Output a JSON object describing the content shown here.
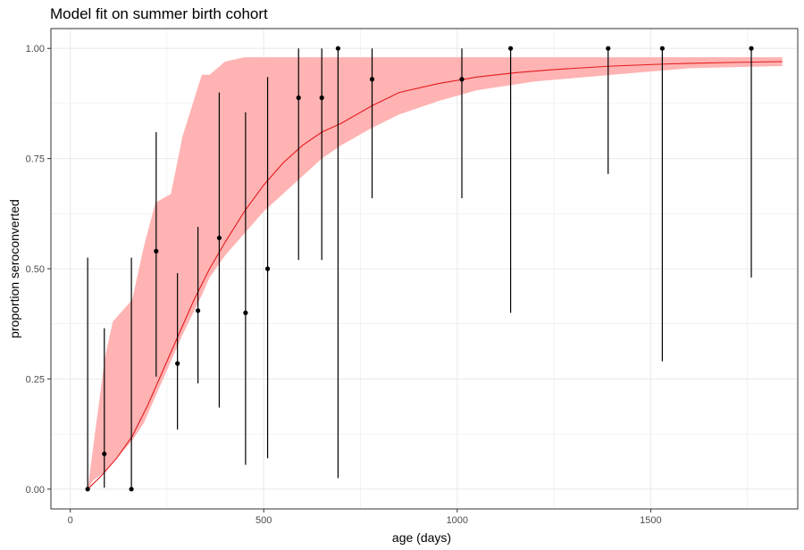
{
  "chart_data": {
    "type": "line",
    "title": "Model fit on summer birth cohort",
    "xlabel": "age (days)",
    "ylabel": "proportion seroconverted",
    "xlim": [
      -50,
      1880
    ],
    "ylim": [
      -0.045,
      1.045
    ],
    "x_ticks": [
      0,
      500,
      1000,
      1500
    ],
    "y_ticks": [
      0.0,
      0.25,
      0.5,
      0.75,
      1.0
    ],
    "x_tick_labels": [
      "0",
      "500",
      "1000",
      "1500"
    ],
    "y_tick_labels": [
      "0.00",
      "0.25",
      "0.50",
      "0.75",
      "1.00"
    ],
    "grid": true,
    "legend": "none",
    "colors": {
      "fit": "#e41a1c",
      "band": "#ffb3b3",
      "points": "#000000",
      "grid": "#ebebeb",
      "panel_border": "#333333"
    },
    "fit_line": {
      "x": [
        45,
        80,
        120,
        160,
        200,
        240,
        280,
        320,
        360,
        400,
        450,
        500,
        550,
        600,
        650,
        700,
        780,
        850,
        950,
        1050,
        1150,
        1250,
        1400,
        1550,
        1700,
        1840
      ],
      "y": [
        0.0,
        0.03,
        0.07,
        0.12,
        0.19,
        0.27,
        0.35,
        0.43,
        0.5,
        0.56,
        0.63,
        0.69,
        0.74,
        0.78,
        0.81,
        0.83,
        0.87,
        0.9,
        0.92,
        0.935,
        0.945,
        0.952,
        0.96,
        0.965,
        0.968,
        0.97
      ]
    },
    "ribbon": {
      "x": [
        45,
        60,
        90,
        110,
        130,
        160,
        190,
        220,
        260,
        290,
        340,
        360,
        400,
        450,
        500,
        550,
        600,
        650,
        700,
        780,
        850,
        950,
        1050,
        1200,
        1400,
        1600,
        1840
      ],
      "lower": [
        0.0,
        0.02,
        0.04,
        0.06,
        0.08,
        0.11,
        0.15,
        0.21,
        0.29,
        0.35,
        0.44,
        0.48,
        0.53,
        0.58,
        0.63,
        0.67,
        0.71,
        0.75,
        0.78,
        0.82,
        0.85,
        0.88,
        0.905,
        0.925,
        0.94,
        0.955,
        0.96
      ],
      "upper": [
        0.0,
        0.1,
        0.3,
        0.38,
        0.4,
        0.43,
        0.55,
        0.65,
        0.67,
        0.8,
        0.94,
        0.94,
        0.97,
        0.98,
        0.98,
        0.98,
        0.98,
        0.98,
        0.98,
        0.98,
        0.98,
        0.98,
        0.98,
        0.98,
        0.98,
        0.98,
        0.98
      ]
    },
    "points": [
      {
        "x": 45,
        "y": 0.0,
        "lo": 0.0,
        "hi": 0.525
      },
      {
        "x": 88,
        "y": 0.08,
        "lo": 0.003,
        "hi": 0.365
      },
      {
        "x": 158,
        "y": 0.0,
        "lo": 0.0,
        "hi": 0.525
      },
      {
        "x": 222,
        "y": 0.54,
        "lo": 0.255,
        "hi": 0.81
      },
      {
        "x": 277,
        "y": 0.285,
        "lo": 0.135,
        "hi": 0.49
      },
      {
        "x": 330,
        "y": 0.405,
        "lo": 0.24,
        "hi": 0.595
      },
      {
        "x": 385,
        "y": 0.57,
        "lo": 0.185,
        "hi": 0.9
      },
      {
        "x": 453,
        "y": 0.4,
        "lo": 0.055,
        "hi": 0.855
      },
      {
        "x": 510,
        "y": 0.5,
        "lo": 0.07,
        "hi": 0.935
      },
      {
        "x": 590,
        "y": 0.888,
        "lo": 0.52,
        "hi": 1.0
      },
      {
        "x": 650,
        "y": 0.888,
        "lo": 0.52,
        "hi": 1.0
      },
      {
        "x": 692,
        "y": 1.0,
        "lo": 0.025,
        "hi": 1.0
      },
      {
        "x": 780,
        "y": 0.93,
        "lo": 0.66,
        "hi": 1.0
      },
      {
        "x": 1012,
        "y": 0.93,
        "lo": 0.66,
        "hi": 1.0
      },
      {
        "x": 1138,
        "y": 1.0,
        "lo": 0.4,
        "hi": 1.0
      },
      {
        "x": 1390,
        "y": 1.0,
        "lo": 0.715,
        "hi": 1.0
      },
      {
        "x": 1530,
        "y": 1.0,
        "lo": 0.29,
        "hi": 1.0
      },
      {
        "x": 1760,
        "y": 1.0,
        "lo": 0.48,
        "hi": 1.0
      }
    ]
  }
}
